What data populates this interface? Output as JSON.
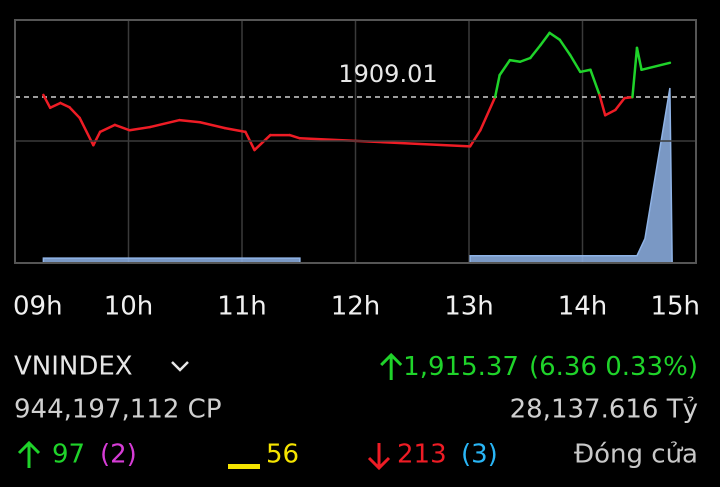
{
  "chart_data": {
    "type": "line",
    "xlim": [
      9,
      15
    ],
    "ylim": [
      1878,
      1923.4
    ],
    "xticks": [
      {
        "value": 9,
        "label": "09h"
      },
      {
        "value": 10,
        "label": "10h"
      },
      {
        "value": 11,
        "label": "11h"
      },
      {
        "value": 12,
        "label": "12h"
      },
      {
        "value": 13,
        "label": "13h"
      },
      {
        "value": 14,
        "label": "14h"
      },
      {
        "value": 15,
        "label": "15h"
      }
    ],
    "reference": 1909.01,
    "up_color": "#1fd32a",
    "down_color": "#ee1c25",
    "x": [
      9.25,
      9.31,
      9.4,
      9.48,
      9.57,
      9.69,
      9.75,
      9.88,
      10.01,
      10.19,
      10.45,
      10.63,
      10.85,
      11.03,
      11.11,
      11.25,
      11.42,
      11.51,
      13.01,
      13.1,
      13.23,
      13.27,
      13.36,
      13.45,
      13.54,
      13.63,
      13.71,
      13.8,
      13.89,
      13.98,
      14.07,
      14.15,
      14.2,
      14.29,
      14.37,
      14.44,
      14.48,
      14.52,
      14.77
    ],
    "values": [
      1909.4,
      1907.0,
      1907.9,
      1907.1,
      1905.1,
      1900.0,
      1902.5,
      1903.8,
      1902.8,
      1903.4,
      1904.7,
      1904.3,
      1903.2,
      1902.5,
      1899.1,
      1901.9,
      1901.9,
      1901.3,
      1899.8,
      1902.8,
      1909.0,
      1913.1,
      1915.9,
      1915.6,
      1916.3,
      1918.7,
      1921.0,
      1919.7,
      1916.9,
      1913.7,
      1914.1,
      1909.4,
      1905.6,
      1906.6,
      1908.8,
      1909.0,
      1918.2,
      1914.1,
      1915.4
    ],
    "volume": {
      "color": "#8fb3e6",
      "ylim": [
        0,
        100
      ],
      "x": [
        9.25,
        11.51,
        11.52,
        13.01,
        14.48,
        14.55,
        14.77,
        14.79
      ],
      "values": [
        2,
        2,
        null,
        3,
        3,
        10,
        72,
        0
      ]
    }
  },
  "quote": {
    "symbol": "VNINDEX",
    "price": "1,915.37",
    "change": "(6.36 0.33%)",
    "volume": "944,197,112 CP",
    "value": "28,137.616 Tỷ",
    "advances": "97",
    "advances_ceiling": "(2)",
    "unchanged": "56",
    "declines": "213",
    "declines_floor": "(3)",
    "status": "Đóng cửa"
  }
}
